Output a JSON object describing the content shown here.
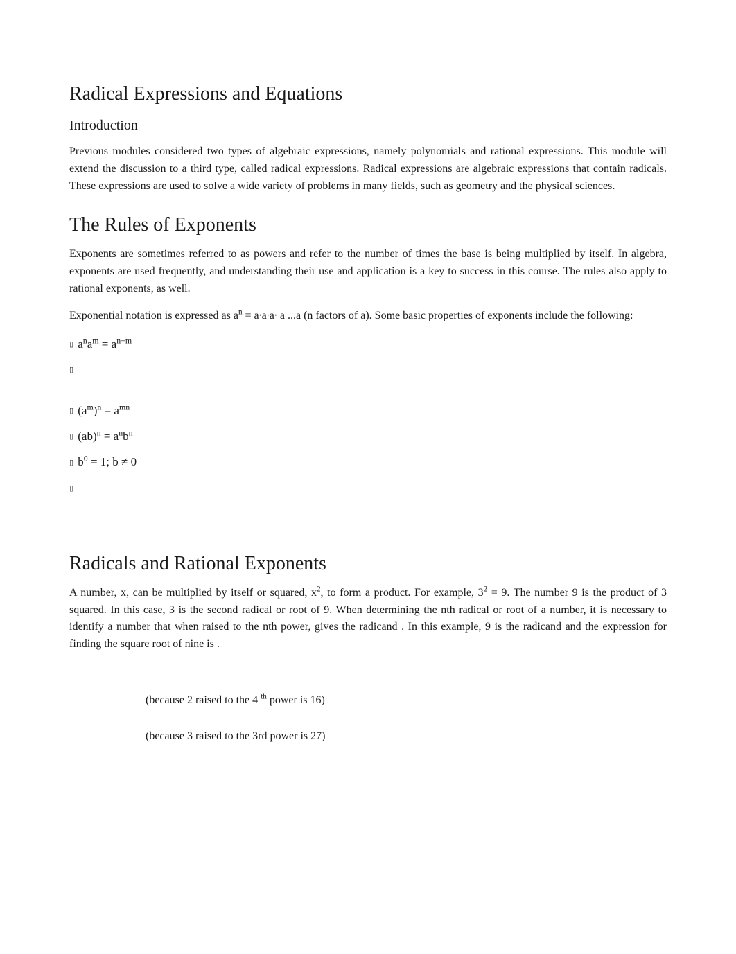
{
  "colors": {
    "background": "#ffffff",
    "text": "#1a1a1a"
  },
  "typography": {
    "body_family": "Georgia, 'Times New Roman', serif",
    "body_size_pt": 12,
    "h1_size_pt": 21,
    "h2_size_pt": 21,
    "h3_size_pt": 15
  },
  "title": "Radical Expressions and Equations",
  "intro": {
    "heading": "Introduction",
    "para": "Previous modules considered two types of algebraic expressions, namely polynomials and rational expressions. This module will extend the discussion to a third type, called radical expressions. Radical expressions are algebraic expressions that contain radicals. These expressions are used to solve a wide variety of problems in many fields, such as geometry and the physical sciences."
  },
  "rules": {
    "heading": "The Rules of Exponents",
    "para1": "Exponents are sometimes referred to as  powers and refer to the number of times the  base is being multiplied by itself. In algebra, exponents are used frequently, and understanding their use and application is a key to success in this course. The rules also apply to rational exponents, as well.",
    "para2_pre": "Exponential notation is expressed as a",
    "para2_mid": " = a∙a∙a∙ a ...a (n factors of a). Some basic properties of exponents include the following:",
    "list": [
      {
        "html": "a<sup>n</sup>a<sup>m</sup> = a<sup>n+m</sup>"
      },
      {
        "html": ""
      },
      {
        "html": "(a<sup>m</sup>)<sup>n</sup> = a<sup>mn</sup>"
      },
      {
        "html": "(ab)<sup>n</sup> = a<sup>n</sup>b<sup>n</sup>"
      },
      {
        "html": "b<sup>0</sup> = 1; b ≠ 0"
      },
      {
        "html": ""
      }
    ]
  },
  "radicals": {
    "heading": "Radicals and Rational Exponents",
    "para_html": "A number, x, can be multiplied by itself or squared, x<sup>2</sup>, to form a product. For example, 3<sup>2</sup> = 9. The number 9 is the product of 3 squared. In this case, 3 is the second radical or root of 9. When determining the nth radical or root of a number, it is necessary to identify a number that when raised to the  nth power, gives the radicand . In this example, 9 is the radicand and the expression for finding the square root of nine is          .",
    "examples": [
      "(because 2 raised to the 4 <sup>th</sup> power is 16)",
      "(because 3 raised to the 3rd power is 27)"
    ]
  }
}
